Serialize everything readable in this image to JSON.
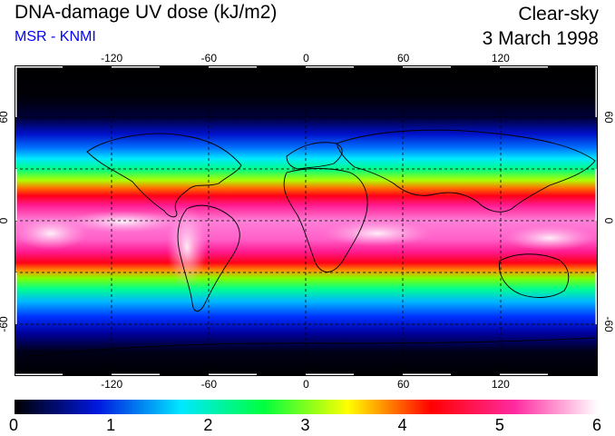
{
  "header": {
    "title": "DNA-damage UV dose (kJ/m2)",
    "subtitle": "MSR - KNMI",
    "condition": "Clear-sky",
    "date": "3 March 1998"
  },
  "map": {
    "longitude_ticks": [
      "-120",
      "-60",
      "0",
      "60",
      "120"
    ],
    "latitude_ticks": [
      "60",
      "0",
      "-60"
    ],
    "longitude_values": [
      -120,
      -60,
      0,
      60,
      120
    ],
    "latitude_values": [
      60,
      0,
      -60
    ],
    "longitude_range": [
      -180,
      180
    ],
    "latitude_range": [
      -90,
      90
    ],
    "dashed_gridlines": true
  },
  "colorbar": {
    "labels": [
      "0",
      "1",
      "2",
      "3",
      "4",
      "5",
      "6"
    ],
    "range": [
      0,
      6
    ],
    "colors": [
      "#000000",
      "#0018e0",
      "#00e8ff",
      "#00ff3c",
      "#ffff00",
      "#ff0000",
      "#ff2aa0",
      "#ffffff"
    ]
  }
}
